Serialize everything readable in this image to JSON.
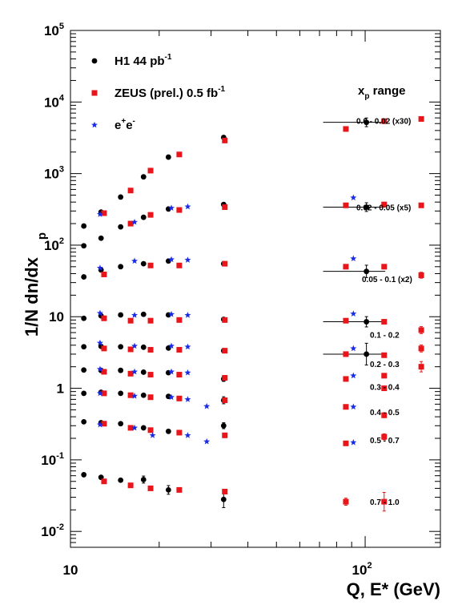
{
  "chart_data": {
    "type": "scatter",
    "xlabel": "Q, E* (GeV)",
    "ylabel": "1/N  dn/dx",
    "ylabel_sub": "p",
    "xscale": "log",
    "yscale": "log",
    "xlim": [
      10,
      180
    ],
    "ylim": [
      0.006,
      100000
    ],
    "x_tick_labels": [
      {
        "value": 10,
        "base": "10",
        "exp": ""
      },
      {
        "value": 100,
        "base": "10",
        "exp": "2"
      }
    ],
    "y_tick_labels": [
      {
        "value": 0.01,
        "base": "10",
        "exp": "-2"
      },
      {
        "value": 0.1,
        "base": "10",
        "exp": "-1"
      },
      {
        "value": 1,
        "base": "1",
        "exp": ""
      },
      {
        "value": 10,
        "base": "10",
        "exp": ""
      },
      {
        "value": 100,
        "base": "10",
        "exp": "2"
      },
      {
        "value": 1000,
        "base": "10",
        "exp": "3"
      },
      {
        "value": 10000,
        "base": "10",
        "exp": "4"
      },
      {
        "value": 100000,
        "base": "10",
        "exp": "5"
      }
    ],
    "legend_placement": "top-left",
    "legend": [
      {
        "series": "h1",
        "label": "H1 44 pb",
        "sup": "-1"
      },
      {
        "series": "zeus",
        "label": "ZEUS (prel.) 0.5 fb",
        "sup": "-1"
      },
      {
        "series": "ee",
        "label": "e",
        "sup": "+",
        "label2": "e",
        "sup2": "-"
      }
    ],
    "ranges_title": {
      "main": "x",
      "sub": "p",
      "rest": " range"
    },
    "ranges": [
      {
        "label": "0.0 - 0.02 (x30)",
        "y": 5500
      },
      {
        "label": "0.02 - 0.05 (x5)",
        "y": 340
      },
      {
        "label": "0.05 - 0.1 (x2)",
        "y": 34
      },
      {
        "label": "0.1 - 0.2",
        "y": 5.6
      },
      {
        "label": "0.2 - 0.3",
        "y": 2.2
      },
      {
        "label": "0.3 - 0.4",
        "y": 1.05
      },
      {
        "label": "0.4 - 0.5",
        "y": 0.47
      },
      {
        "label": "0.5 - 0.7",
        "y": 0.19
      },
      {
        "label": "0.7 - 1.0",
        "y": 0.026
      }
    ],
    "series": [
      {
        "name": "H1 44 pb-1",
        "key": "h1",
        "color": "#000000",
        "marker": "circle",
        "points": [
          {
            "x": 11.1,
            "y": 185
          },
          {
            "x": 12.7,
            "y": 290
          },
          {
            "x": 14.8,
            "y": 470
          },
          {
            "x": 17.7,
            "y": 900
          },
          {
            "x": 21.5,
            "y": 1700
          },
          {
            "x": 33.1,
            "y": 3200
          },
          {
            "x": 101,
            "y": 5200,
            "xerr": [
              72,
              117
            ],
            "yerr": 0.15
          },
          {
            "x": 11.1,
            "y": 98
          },
          {
            "x": 12.7,
            "y": 125
          },
          {
            "x": 14.8,
            "y": 180
          },
          {
            "x": 17.7,
            "y": 245
          },
          {
            "x": 21.5,
            "y": 320
          },
          {
            "x": 33.1,
            "y": 370
          },
          {
            "x": 101,
            "y": 340,
            "xerr": [
              72,
              117
            ],
            "yerr": 0.15
          },
          {
            "x": 11.1,
            "y": 36
          },
          {
            "x": 12.7,
            "y": 45
          },
          {
            "x": 14.8,
            "y": 50
          },
          {
            "x": 17.7,
            "y": 55
          },
          {
            "x": 21.5,
            "y": 60
          },
          {
            "x": 33.1,
            "y": 55
          },
          {
            "x": 101,
            "y": 43,
            "xerr": [
              72,
              117
            ],
            "yerr": 0.22
          },
          {
            "x": 11.1,
            "y": 9.5
          },
          {
            "x": 12.7,
            "y": 10.3
          },
          {
            "x": 14.8,
            "y": 10.6
          },
          {
            "x": 17.7,
            "y": 10.8
          },
          {
            "x": 21.5,
            "y": 10.6
          },
          {
            "x": 33.1,
            "y": 9.2
          },
          {
            "x": 101,
            "y": 8.5,
            "xerr": [
              72,
              117
            ],
            "yerr": 0.18
          },
          {
            "x": 11.1,
            "y": 3.8
          },
          {
            "x": 12.7,
            "y": 3.85
          },
          {
            "x": 14.8,
            "y": 3.8
          },
          {
            "x": 17.7,
            "y": 3.75
          },
          {
            "x": 21.5,
            "y": 3.65
          },
          {
            "x": 33.1,
            "y": 3.35
          },
          {
            "x": 101,
            "y": 3.0,
            "xerr": [
              72,
              117
            ],
            "yerr": 0.42
          },
          {
            "x": 11.1,
            "y": 1.8
          },
          {
            "x": 12.7,
            "y": 1.78
          },
          {
            "x": 14.8,
            "y": 1.78
          },
          {
            "x": 17.7,
            "y": 1.68
          },
          {
            "x": 21.5,
            "y": 1.65
          },
          {
            "x": 33.1,
            "y": 1.35,
            "yerr": 0.08
          },
          {
            "x": 11.1,
            "y": 0.85
          },
          {
            "x": 12.7,
            "y": 0.88
          },
          {
            "x": 14.8,
            "y": 0.85
          },
          {
            "x": 17.7,
            "y": 0.8
          },
          {
            "x": 21.5,
            "y": 0.77
          },
          {
            "x": 33.1,
            "y": 0.68,
            "yerr": 0.12
          },
          {
            "x": 11.1,
            "y": 0.34
          },
          {
            "x": 12.7,
            "y": 0.33
          },
          {
            "x": 14.8,
            "y": 0.32
          },
          {
            "x": 17.7,
            "y": 0.28
          },
          {
            "x": 21.5,
            "y": 0.25
          },
          {
            "x": 33.1,
            "y": 0.3,
            "yerr": 0.1
          },
          {
            "x": 11.1,
            "y": 0.062
          },
          {
            "x": 12.7,
            "y": 0.057
          },
          {
            "x": 14.8,
            "y": 0.052
          },
          {
            "x": 17.7,
            "y": 0.053,
            "yerr": 0.12
          },
          {
            "x": 21.5,
            "y": 0.038,
            "yerr": 0.15
          },
          {
            "x": 33.1,
            "y": 0.028,
            "yerr": 0.3
          }
        ]
      },
      {
        "name": "ZEUS (prel.) 0.5 fb-1",
        "key": "zeus",
        "color": "#e8161a",
        "marker": "square",
        "points": [
          {
            "x": 18.7,
            "y": 1100
          },
          {
            "x": 23.4,
            "y": 1850
          },
          {
            "x": 33.4,
            "y": 2900
          },
          {
            "x": 86,
            "y": 4200
          },
          {
            "x": 116,
            "y": 5400
          },
          {
            "x": 155,
            "y": 5800
          },
          {
            "x": 13.0,
            "y": 280
          },
          {
            "x": 16.0,
            "y": 580
          },
          {
            "x": 18.7,
            "y": 265
          },
          {
            "x": 23.4,
            "y": 310
          },
          {
            "x": 33.4,
            "y": 340
          },
          {
            "x": 86,
            "y": 360
          },
          {
            "x": 116,
            "y": 370
          },
          {
            "x": 155,
            "y": 360
          },
          {
            "x": 13.0,
            "y": 39
          },
          {
            "x": 16.0,
            "y": 200
          },
          {
            "x": 18.7,
            "y": 52
          },
          {
            "x": 23.4,
            "y": 52
          },
          {
            "x": 33.4,
            "y": 55
          },
          {
            "x": 86,
            "y": 50
          },
          {
            "x": 116,
            "y": 50
          },
          {
            "x": 155,
            "y": 38,
            "yerr": 0.1
          },
          {
            "x": 13.0,
            "y": 9.5
          },
          {
            "x": 16.0,
            "y": 8.8
          },
          {
            "x": 18.7,
            "y": 8.8
          },
          {
            "x": 23.4,
            "y": 9.0
          },
          {
            "x": 33.4,
            "y": 9.0
          },
          {
            "x": 86,
            "y": 8.8
          },
          {
            "x": 116,
            "y": 8.5
          },
          {
            "x": 155,
            "y": 6.5,
            "yerr": 0.12
          },
          {
            "x": 13.0,
            "y": 3.6
          },
          {
            "x": 16.0,
            "y": 3.5
          },
          {
            "x": 18.7,
            "y": 3.45
          },
          {
            "x": 23.4,
            "y": 3.45
          },
          {
            "x": 33.4,
            "y": 3.35
          },
          {
            "x": 86,
            "y": 3.0
          },
          {
            "x": 116,
            "y": 2.9
          },
          {
            "x": 155,
            "y": 3.6,
            "yerr": 0.12
          },
          {
            "x": 13.0,
            "y": 1.7
          },
          {
            "x": 16.0,
            "y": 1.6
          },
          {
            "x": 18.7,
            "y": 1.55
          },
          {
            "x": 23.4,
            "y": 1.55
          },
          {
            "x": 33.4,
            "y": 1.4
          },
          {
            "x": 86,
            "y": 1.35
          },
          {
            "x": 116,
            "y": 1.5
          },
          {
            "x": 155,
            "y": 2.0,
            "yerr": 0.18
          },
          {
            "x": 13.0,
            "y": 0.85
          },
          {
            "x": 16.0,
            "y": 0.8
          },
          {
            "x": 18.7,
            "y": 0.75
          },
          {
            "x": 23.4,
            "y": 0.72
          },
          {
            "x": 33.4,
            "y": 0.68
          },
          {
            "x": 86,
            "y": 0.55
          },
          {
            "x": 116,
            "y": 1.0,
            "yerr": 0.05
          },
          {
            "x": 13.0,
            "y": 0.32
          },
          {
            "x": 16.0,
            "y": 0.28
          },
          {
            "x": 18.7,
            "y": 0.26
          },
          {
            "x": 23.4,
            "y": 0.24
          },
          {
            "x": 33.4,
            "y": 0.22
          },
          {
            "x": 86,
            "y": 0.17,
            "yerr": 0.05
          },
          {
            "x": 116,
            "y": 0.42,
            "yerr": 0.08
          },
          {
            "x": 116,
            "y": 0.21,
            "yerr": 0.1
          },
          {
            "x": 13.0,
            "y": 0.05
          },
          {
            "x": 16.0,
            "y": 0.044
          },
          {
            "x": 18.7,
            "y": 0.04
          },
          {
            "x": 23.4,
            "y": 0.038
          },
          {
            "x": 33.4,
            "y": 0.036
          },
          {
            "x": 86,
            "y": 0.026,
            "yerr": 0.12
          },
          {
            "x": 116,
            "y": 0.026,
            "yerr": 0.35
          }
        ]
      },
      {
        "name": "e+e-",
        "key": "ee",
        "color": "#1a2be8",
        "marker": "star",
        "points": [
          {
            "x": 12.6,
            "y": 270
          },
          {
            "x": 16.5,
            "y": 210
          },
          {
            "x": 22.0,
            "y": 330
          },
          {
            "x": 25.0,
            "y": 345
          },
          {
            "x": 91.2,
            "y": 460
          },
          {
            "x": 12.6,
            "y": 48
          },
          {
            "x": 16.5,
            "y": 60
          },
          {
            "x": 22.0,
            "y": 63
          },
          {
            "x": 25.0,
            "y": 62
          },
          {
            "x": 91.2,
            "y": 65
          },
          {
            "x": 12.6,
            "y": 11.2
          },
          {
            "x": 16.5,
            "y": 10.5
          },
          {
            "x": 22.0,
            "y": 10.8
          },
          {
            "x": 25.0,
            "y": 10.5
          },
          {
            "x": 91.2,
            "y": 11.0
          },
          {
            "x": 12.6,
            "y": 4.3
          },
          {
            "x": 16.5,
            "y": 3.9
          },
          {
            "x": 22.0,
            "y": 3.9
          },
          {
            "x": 25.0,
            "y": 3.8
          },
          {
            "x": 91.2,
            "y": 3.6
          },
          {
            "x": 12.6,
            "y": 1.85
          },
          {
            "x": 16.5,
            "y": 1.7
          },
          {
            "x": 22.0,
            "y": 1.7
          },
          {
            "x": 25.0,
            "y": 1.65
          },
          {
            "x": 91.2,
            "y": 1.5
          },
          {
            "x": 12.6,
            "y": 0.85
          },
          {
            "x": 16.5,
            "y": 0.78
          },
          {
            "x": 22.0,
            "y": 0.75
          },
          {
            "x": 25.0,
            "y": 0.7
          },
          {
            "x": 29.0,
            "y": 0.56
          },
          {
            "x": 91.2,
            "y": 0.55
          },
          {
            "x": 12.6,
            "y": 0.31
          },
          {
            "x": 16.5,
            "y": 0.28
          },
          {
            "x": 19.0,
            "y": 0.22
          },
          {
            "x": 25.0,
            "y": 0.22
          },
          {
            "x": 29.0,
            "y": 0.18
          },
          {
            "x": 91.2,
            "y": 0.175
          }
        ]
      }
    ]
  }
}
